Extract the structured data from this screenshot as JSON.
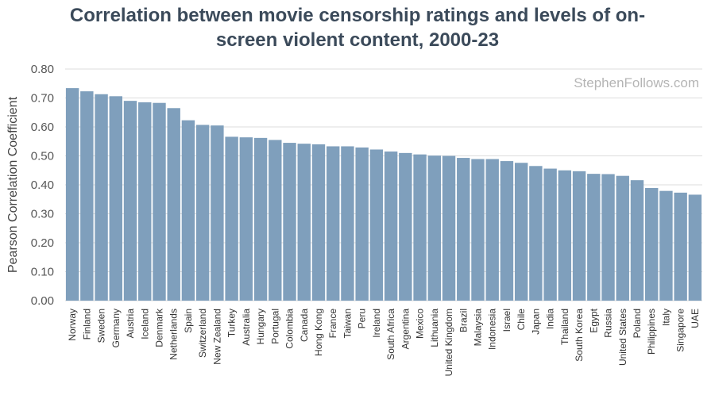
{
  "title_line1": "Correlation between movie censorship ratings and levels of on-",
  "title_line2": "screen violent content, 2000-23",
  "watermark": "StephenFollows.com",
  "chart_data": {
    "type": "bar",
    "title": "Correlation between movie censorship ratings and levels of on-screen violent content, 2000-23",
    "ylabel": "Pearson Correlation Coefficient",
    "xlabel": "",
    "ylim": [
      0,
      0.8
    ],
    "yticks": [
      "0.00",
      "0.10",
      "0.20",
      "0.30",
      "0.40",
      "0.50",
      "0.60",
      "0.70",
      "0.80"
    ],
    "grid": true,
    "bar_color": "#7f9fbc",
    "categories": [
      "Norway",
      "Finland",
      "Sweden",
      "Germany",
      "Austria",
      "Iceland",
      "Denmark",
      "Netherlands",
      "Spain",
      "Switzerland",
      "New Zealand",
      "Turkey",
      "Australia",
      "Hungary",
      "Portugal",
      "Colombia",
      "Canada",
      "Hong Kong",
      "France",
      "Taiwan",
      "Peru",
      "Ireland",
      "South Africa",
      "Argentina",
      "Mexico",
      "Lithuania",
      "United Kingdom",
      "Brazil",
      "Malaysia",
      "Indonesia",
      "Israel",
      "Chile",
      "Japan",
      "India",
      "Thailand",
      "South Korea",
      "Egypt",
      "Russia",
      "United States",
      "Poland",
      "Philippines",
      "Italy",
      "Singapore",
      "UAE"
    ],
    "values": [
      0.734,
      0.723,
      0.713,
      0.706,
      0.69,
      0.685,
      0.683,
      0.665,
      0.623,
      0.607,
      0.605,
      0.566,
      0.564,
      0.562,
      0.555,
      0.545,
      0.542,
      0.54,
      0.533,
      0.533,
      0.529,
      0.522,
      0.515,
      0.51,
      0.505,
      0.501,
      0.5,
      0.493,
      0.489,
      0.489,
      0.482,
      0.476,
      0.465,
      0.456,
      0.45,
      0.447,
      0.438,
      0.437,
      0.431,
      0.416,
      0.389,
      0.379,
      0.373,
      0.366
    ]
  }
}
